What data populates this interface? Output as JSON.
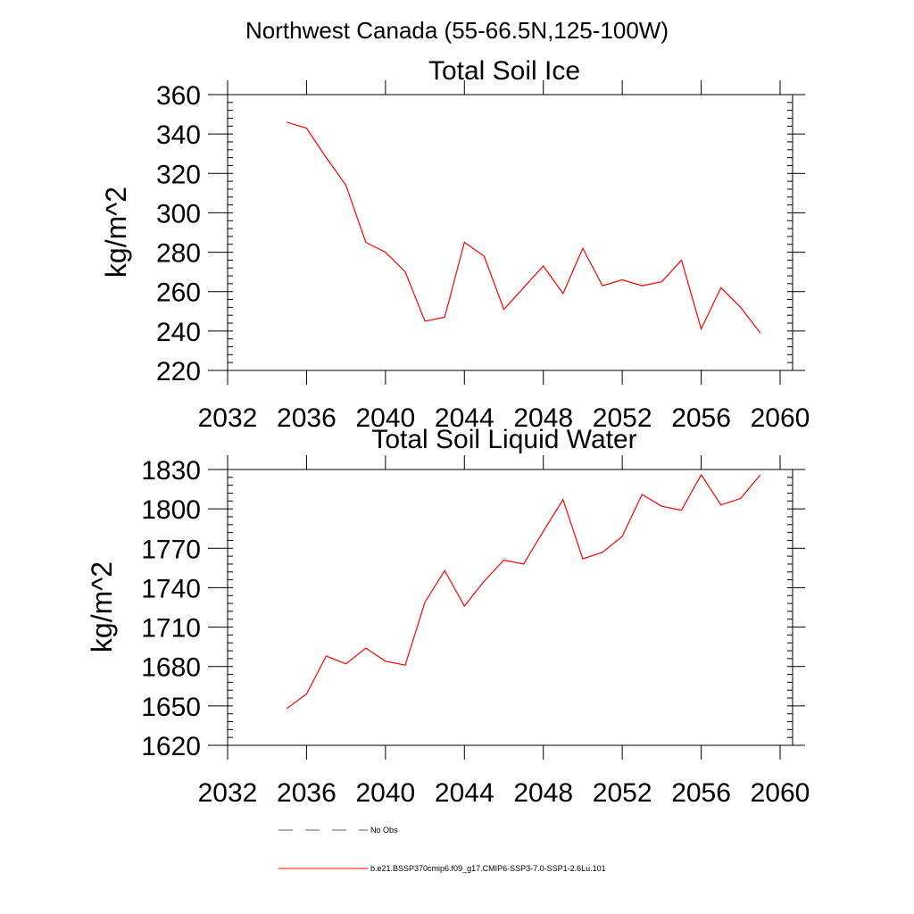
{
  "page_title": "Northwest Canada (55-66.5N,125-100W)",
  "colors": {
    "series": "#ff0000",
    "no_obs": "#5a5a8a",
    "axis": "#000000"
  },
  "chart_data": [
    {
      "type": "line",
      "title": "Total Soil Ice",
      "ylabel": "kg/m^2",
      "xlabel": "",
      "xlim": [
        2032,
        2060
      ],
      "ylim": [
        220,
        360
      ],
      "xticks": [
        2032,
        2036,
        2040,
        2044,
        2048,
        2052,
        2056,
        2060
      ],
      "yticks": [
        220,
        240,
        260,
        280,
        300,
        320,
        340,
        360
      ],
      "x": [
        2035,
        2036,
        2037,
        2038,
        2039,
        2040,
        2041,
        2042,
        2043,
        2044,
        2045,
        2046,
        2047,
        2048,
        2049,
        2050,
        2051,
        2052,
        2053,
        2054,
        2055,
        2056,
        2057,
        2058,
        2059
      ],
      "series": [
        {
          "name": "b.e21.BSSP370cmip6.f09_g17.CMIP6-SSP3-7.0-SSP1-2.6Lu.101",
          "values": [
            346,
            343,
            328,
            314,
            285,
            280,
            270,
            245,
            247,
            285,
            278,
            251,
            262,
            273,
            259,
            282,
            263,
            266,
            263,
            265,
            276,
            241,
            262,
            252,
            239
          ]
        }
      ]
    },
    {
      "type": "line",
      "title": "Total Soil Liquid Water",
      "ylabel": "kg/m^2",
      "xlabel": "",
      "xlim": [
        2032,
        2060
      ],
      "ylim": [
        1620,
        1830
      ],
      "xticks": [
        2032,
        2036,
        2040,
        2044,
        2048,
        2052,
        2056,
        2060
      ],
      "yticks": [
        1620,
        1650,
        1680,
        1710,
        1740,
        1770,
        1800,
        1830
      ],
      "x": [
        2035,
        2036,
        2037,
        2038,
        2039,
        2040,
        2041,
        2042,
        2043,
        2044,
        2045,
        2046,
        2047,
        2048,
        2049,
        2050,
        2051,
        2052,
        2053,
        2054,
        2055,
        2056,
        2057,
        2058,
        2059
      ],
      "series": [
        {
          "name": "b.e21.BSSP370cmip6.f09_g17.CMIP6-SSP3-7.0-SSP1-2.6Lu.101",
          "values": [
            1648,
            1659,
            1688,
            1682,
            1694,
            1684,
            1681,
            1729,
            1753,
            1726,
            1745,
            1761,
            1758,
            1783,
            1807,
            1762,
            1767,
            1779,
            1811,
            1802,
            1799,
            1826,
            1803,
            1808,
            1826
          ]
        }
      ]
    }
  ],
  "legend": [
    {
      "label": "No Obs",
      "style": "dashed",
      "color": "#5a5a8a"
    },
    {
      "label": "b.e21.BSSP370cmip6.f09_g17.CMIP6-SSP3-7.0-SSP1-2.6Lu.101",
      "style": "solid",
      "color": "#ff0000"
    }
  ]
}
